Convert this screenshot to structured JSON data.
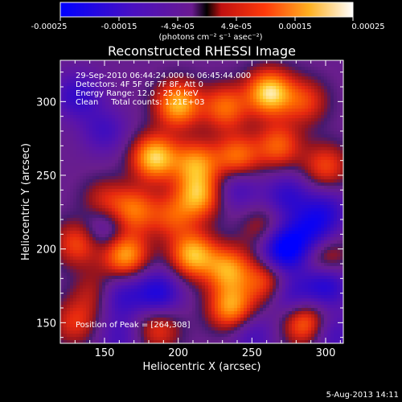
{
  "colorbar": {
    "ticks": [
      "-0.00025",
      "-0.00015",
      "-4.9e-05",
      "4.9e-05",
      "0.00015",
      "0.00025"
    ],
    "unit_label": "(photons cm⁻² s⁻¹ asec⁻²)",
    "range": [
      -0.00025,
      0.00025
    ],
    "colormap": [
      "#0000ff",
      "#5a0fb0",
      "#7a1e8c",
      "#000000",
      "#e8281c",
      "#ff6a00",
      "#ffd030",
      "#ffffff"
    ]
  },
  "annotations": {
    "line1": "29-Sep-2010 06:44:24.000 to 06:45:44.000",
    "line2": "Detectors: 4F 5F 6F 7F 8F, Att 0",
    "line3": "Energy Range: 12.0 - 25.0 keV",
    "line4": "Clean     Total counts: 1.21E+03",
    "peak": "Position of Peak = [264,308]"
  },
  "timestamp": "5-Aug-2013 14:11",
  "chart_data": {
    "type": "heatmap",
    "title": "Reconstructed RHESSI Image",
    "xlabel": "Heliocentric X (arcsec)",
    "ylabel": "Heliocentric Y (arcsec)",
    "xlim": [
      120,
      312
    ],
    "ylim": [
      136,
      328
    ],
    "xticks": [
      150,
      200,
      250,
      300
    ],
    "yticks": [
      150,
      200,
      250,
      300
    ],
    "peak_position": [
      264,
      308
    ],
    "blobs": [
      {
        "x": 200,
        "y": 298,
        "v": 0.00022
      },
      {
        "x": 232,
        "y": 296,
        "v": 0.00016
      },
      {
        "x": 262,
        "y": 306,
        "v": 0.00025
      },
      {
        "x": 286,
        "y": 300,
        "v": 0.00012
      },
      {
        "x": 184,
        "y": 262,
        "v": 0.00024
      },
      {
        "x": 212,
        "y": 258,
        "v": 0.00018
      },
      {
        "x": 240,
        "y": 262,
        "v": 0.00017
      },
      {
        "x": 268,
        "y": 270,
        "v": 0.00015
      },
      {
        "x": 300,
        "y": 256,
        "v": 0.00013
      },
      {
        "x": 150,
        "y": 232,
        "v": 0.0001
      },
      {
        "x": 170,
        "y": 226,
        "v": 0.00016
      },
      {
        "x": 214,
        "y": 236,
        "v": 0.0002
      },
      {
        "x": 196,
        "y": 222,
        "v": 0.00012
      },
      {
        "x": 258,
        "y": 214,
        "v": 9e-05
      },
      {
        "x": 132,
        "y": 204,
        "v": 0.00014
      },
      {
        "x": 164,
        "y": 196,
        "v": 0.00021
      },
      {
        "x": 210,
        "y": 196,
        "v": 0.00022
      },
      {
        "x": 234,
        "y": 186,
        "v": 0.00019
      },
      {
        "x": 260,
        "y": 178,
        "v": 0.00014
      },
      {
        "x": 300,
        "y": 194,
        "v": 0.00012
      },
      {
        "x": 144,
        "y": 170,
        "v": 9e-05
      },
      {
        "x": 236,
        "y": 160,
        "v": 0.0002
      },
      {
        "x": 286,
        "y": 150,
        "v": 0.00018
      },
      {
        "x": 186,
        "y": 146,
        "v": 0.00012
      },
      {
        "x": 130,
        "y": 150,
        "v": 0.00011
      },
      {
        "x": 132,
        "y": 304,
        "v": -0.00012
      },
      {
        "x": 150,
        "y": 280,
        "v": -9e-05
      },
      {
        "x": 240,
        "y": 242,
        "v": -0.0001
      },
      {
        "x": 274,
        "y": 236,
        "v": -0.00012
      },
      {
        "x": 300,
        "y": 226,
        "v": -0.00011
      },
      {
        "x": 272,
        "y": 200,
        "v": -0.00025
      },
      {
        "x": 290,
        "y": 212,
        "v": -0.00014
      },
      {
        "x": 300,
        "y": 176,
        "v": -0.00016
      },
      {
        "x": 276,
        "y": 168,
        "v": -0.00012
      },
      {
        "x": 186,
        "y": 170,
        "v": -0.00016
      },
      {
        "x": 160,
        "y": 168,
        "v": -0.00012
      },
      {
        "x": 150,
        "y": 214,
        "v": -0.0001
      },
      {
        "x": 160,
        "y": 140,
        "v": -8e-05
      },
      {
        "x": 250,
        "y": 142,
        "v": -9e-05
      },
      {
        "x": 304,
        "y": 142,
        "v": -0.0001
      }
    ]
  }
}
